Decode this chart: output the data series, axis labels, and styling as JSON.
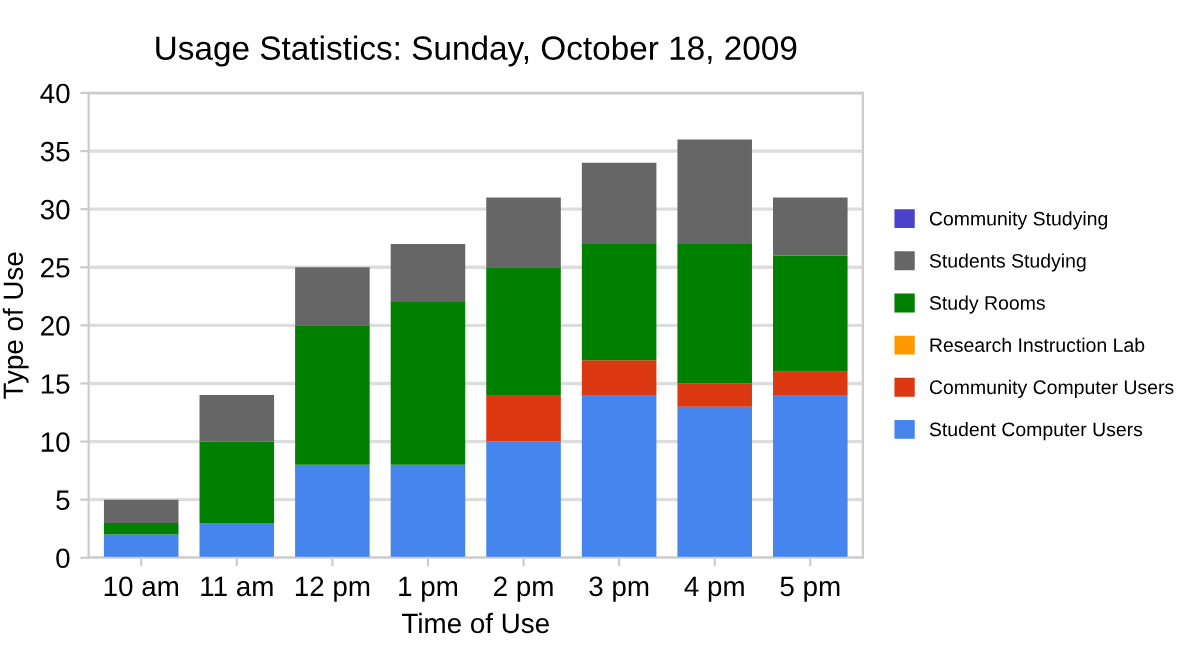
{
  "chart_data": {
    "type": "bar",
    "stacked": true,
    "title": "Usage Statistics: Sunday, October 18, 2009",
    "xlabel": "Time of Use",
    "ylabel": "Type of Use",
    "categories": [
      "10 am",
      "11 am",
      "12 pm",
      "1 pm",
      "2 pm",
      "3 pm",
      "4 pm",
      "5 pm"
    ],
    "series": [
      {
        "name": "Student Computer Users",
        "color": "#4684ee",
        "values": [
          2,
          3,
          8,
          8,
          10,
          14,
          13,
          14
        ]
      },
      {
        "name": "Community Computer Users",
        "color": "#dc3912",
        "values": [
          0,
          0,
          0,
          0,
          4,
          3,
          2,
          2
        ]
      },
      {
        "name": "Research Instruction Lab",
        "color": "#ff9900",
        "values": [
          0,
          0,
          0,
          0,
          0,
          0,
          0,
          0
        ]
      },
      {
        "name": "Study Rooms",
        "color": "#008000",
        "values": [
          1,
          7,
          12,
          14,
          11,
          10,
          12,
          10
        ]
      },
      {
        "name": "Students Studying",
        "color": "#666666",
        "values": [
          2,
          4,
          5,
          5,
          6,
          7,
          9,
          5
        ]
      },
      {
        "name": "Community Studying",
        "color": "#4942cc",
        "values": [
          0,
          0,
          0,
          0,
          0,
          0,
          0,
          0
        ]
      }
    ],
    "ylim": [
      0,
      40
    ],
    "yticks": [
      0,
      5,
      10,
      15,
      20,
      25,
      30,
      35,
      40
    ],
    "grid": "y",
    "legend": "right"
  }
}
